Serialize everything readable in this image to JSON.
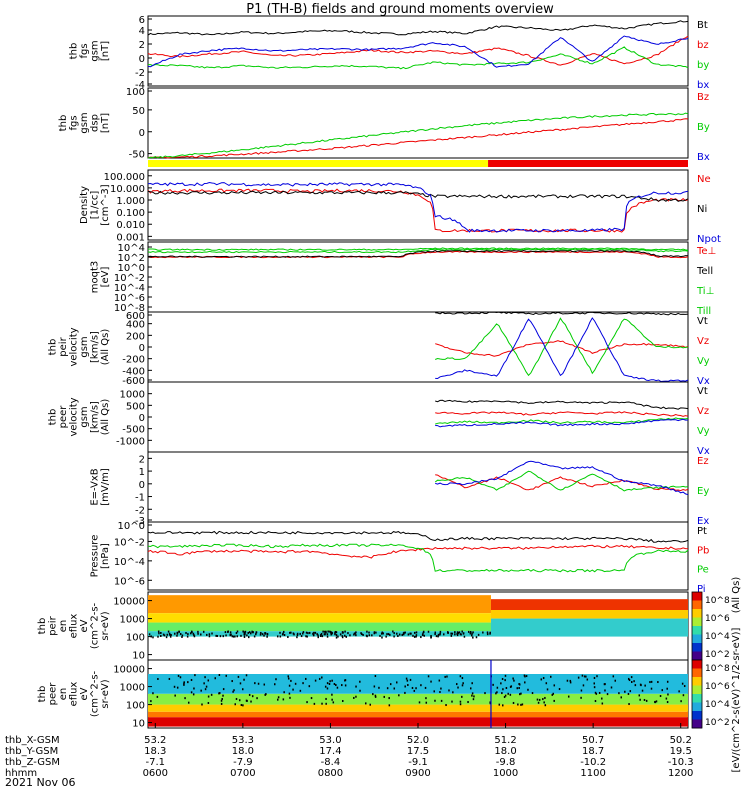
{
  "title": "P1 (TH-B) fields and ground moments overview",
  "date_label": "2021 Nov 06",
  "colorbar_label": "[eV/(cm^2-s(eV)^1/2-sr-eV)]",
  "colorbar_side_label": "(All Qs)",
  "colors": {
    "black": "#000000",
    "red": "#ee0000",
    "green": "#00cc00",
    "blue": "#0000dd",
    "yellow": "#ffff00"
  },
  "status_bar": {
    "yellow_until": "0948",
    "red_from": "0948"
  },
  "chart_data": [
    {
      "type": "line",
      "ylabel": [
        "thb",
        "fgs",
        "gsm",
        "[nT]"
      ],
      "ylim": [
        -4,
        6
      ],
      "yticks": [
        "6",
        "4",
        "2",
        "0",
        "-2",
        "-4"
      ],
      "series": [
        {
          "name": "Bt",
          "color": "black",
          "values": [
            3.4,
            3.6,
            3.3,
            3.7,
            3.5,
            3.8,
            3.9,
            3.6,
            3.4,
            3.8,
            3.5,
            4.5,
            4.3,
            3.9,
            4.7,
            4.2,
            4.9,
            5.3
          ]
        },
        {
          "name": "bz",
          "color": "red",
          "values": [
            0.6,
            0.2,
            0.6,
            0.9,
            0.3,
            0.4,
            0.7,
            1.1,
            0.8,
            1.0,
            0.6,
            1.4,
            0.3,
            -1.0,
            0.6,
            -0.8,
            0.4,
            3.2
          ]
        },
        {
          "name": "by",
          "color": "green",
          "values": [
            -1.0,
            -1.1,
            -1.4,
            -1.1,
            -1.4,
            -1.3,
            -1.1,
            -1.2,
            -1.5,
            -0.6,
            -1.0,
            -0.8,
            -0.6,
            0.5,
            -0.8,
            1.5,
            -0.9,
            -1.3
          ]
        },
        {
          "name": "bx",
          "color": "blue",
          "values": [
            -1.3,
            0.5,
            1.1,
            1.4,
            1.0,
            1.2,
            1.3,
            1.2,
            1.4,
            2.2,
            1.6,
            -1.3,
            -0.8,
            3.0,
            -0.6,
            3.2,
            1.9,
            2.9
          ]
        }
      ]
    },
    {
      "type": "line",
      "ylabel": [
        "thb",
        "fgs",
        "gsm",
        "dsp",
        "[nT]"
      ],
      "ylim": [
        -60,
        100
      ],
      "yticks": [
        "100",
        "50",
        "0",
        "-50"
      ],
      "series": [
        {
          "name": "Bz",
          "color": "red",
          "values": [
            -60,
            -58,
            -55,
            -51,
            -47,
            -42,
            -37,
            -31,
            -25,
            -19,
            -13,
            -7,
            -1,
            5,
            11,
            17,
            23,
            28
          ]
        },
        {
          "name": "By",
          "color": "green",
          "values": [
            -60,
            -55,
            -48,
            -41,
            -33,
            -25,
            -17,
            -9,
            -1,
            7,
            14,
            20,
            26,
            31,
            35,
            38,
            40,
            41
          ]
        },
        {
          "name": "Bx",
          "color": "blue",
          "values": []
        }
      ]
    },
    {
      "type": "line",
      "scale": "log",
      "ylabel": [
        "Density",
        "[1/cc]",
        "[cm^-3]"
      ],
      "ylim": [
        0.0005,
        300
      ],
      "yticks": [
        "100.000",
        "10.000",
        "1.000",
        "0.100",
        "0.010",
        "0.001"
      ],
      "series": [
        {
          "name": "Ne",
          "color": "red",
          "values": [
            5,
            6,
            6,
            6,
            6,
            5,
            6,
            6,
            5,
            0.003,
            0.003,
            0.003,
            0.003,
            0.003,
            0.003,
            0.003,
            1,
            1
          ]
        },
        {
          "name": "Ni",
          "color": "black",
          "values": [
            4,
            4,
            4,
            4,
            4,
            4,
            4,
            4,
            4,
            2,
            2,
            2,
            2,
            2,
            2,
            2,
            1,
            1
          ]
        },
        {
          "name": "Npot",
          "color": "blue",
          "values": [
            20,
            20,
            22,
            20,
            18,
            19,
            20,
            20,
            18,
            0.05,
            0.003,
            0.003,
            0.003,
            0.003,
            0.003,
            0.004,
            4,
            4
          ]
        }
      ]
    },
    {
      "type": "line",
      "scale": "log",
      "ylabel": [
        "moqt3",
        "[eV]"
      ],
      "ylim": [
        1e-09,
        100000
      ],
      "yticks": [
        "10^4",
        "10^2",
        "10^0",
        "10^-2",
        "10^-4",
        "10^-6",
        "10^-8"
      ],
      "series": [
        {
          "name": "Te⊥",
          "color": "red",
          "values": [
            100,
            100,
            100,
            100,
            100,
            100,
            100,
            100,
            100,
            1000,
            1000,
            1000,
            1000,
            1000,
            1000,
            1000,
            100,
            100
          ]
        },
        {
          "name": "Tell",
          "color": "black",
          "values": [
            120,
            120,
            120,
            120,
            120,
            120,
            120,
            120,
            120,
            1500,
            1500,
            1500,
            1500,
            1500,
            1500,
            1500,
            150,
            150
          ]
        },
        {
          "name": "Ti⊥",
          "color": "green",
          "values": [
            1000,
            1000,
            1000,
            1000,
            1000,
            1000,
            1000,
            1000,
            1000,
            3000,
            3000,
            3000,
            3000,
            3000,
            3000,
            3000,
            1500,
            1500
          ]
        },
        {
          "name": "Till",
          "color": "green",
          "values": [
            3000,
            3000,
            3000,
            3000,
            3000,
            3000,
            3000,
            3000,
            3000,
            5000,
            5000,
            5000,
            5000,
            5000,
            5000,
            5000,
            3000,
            3000
          ]
        }
      ]
    },
    {
      "type": "line",
      "ylabel": [
        "thb",
        "peir",
        "velocity",
        "gsm",
        "[km/s]",
        "(All Qs)"
      ],
      "ylim": [
        -600,
        600
      ],
      "yticks": [
        "600",
        "400",
        "200",
        "0",
        "-200",
        "-400",
        "-600"
      ],
      "series": [
        {
          "name": "Vt",
          "color": "black",
          "values": [
            null,
            null,
            null,
            null,
            null,
            null,
            null,
            null,
            null,
            580,
            580,
            590,
            570,
            580,
            580,
            580,
            570,
            560
          ]
        },
        {
          "name": "Vz",
          "color": "red",
          "values": [
            null,
            null,
            null,
            null,
            null,
            null,
            null,
            null,
            null,
            50,
            -100,
            -150,
            50,
            100,
            -100,
            50,
            50,
            0
          ]
        },
        {
          "name": "Vy",
          "color": "green",
          "values": [
            null,
            null,
            null,
            null,
            null,
            null,
            null,
            null,
            null,
            -200,
            -200,
            400,
            -500,
            500,
            -450,
            500,
            0,
            0
          ]
        },
        {
          "name": "Vx",
          "color": "blue",
          "values": [
            null,
            null,
            null,
            null,
            null,
            null,
            null,
            null,
            null,
            -550,
            -400,
            -500,
            500,
            -500,
            500,
            -500,
            -580,
            -580
          ]
        }
      ]
    },
    {
      "type": "line",
      "ylabel": [
        "thb",
        "peer",
        "velocity",
        "gsm",
        "[km/s]",
        "(All Qs)"
      ],
      "ylim": [
        -1500,
        1500
      ],
      "yticks": [
        "1000",
        "500",
        "0",
        "-500",
        "-1000"
      ],
      "series": [
        {
          "name": "Vt",
          "color": "black",
          "values": [
            null,
            null,
            null,
            null,
            null,
            null,
            null,
            null,
            null,
            700,
            650,
            700,
            600,
            650,
            600,
            650,
            400,
            350
          ]
        },
        {
          "name": "Vz",
          "color": "red",
          "values": [
            null,
            null,
            null,
            null,
            null,
            null,
            null,
            null,
            null,
            200,
            150,
            200,
            100,
            200,
            150,
            200,
            100,
            50
          ]
        },
        {
          "name": "Vy",
          "color": "green",
          "values": [
            null,
            null,
            null,
            null,
            null,
            null,
            null,
            null,
            null,
            -300,
            -200,
            -250,
            -150,
            -250,
            -200,
            -250,
            -100,
            -50
          ]
        },
        {
          "name": "Vx",
          "color": "blue",
          "values": [
            null,
            null,
            null,
            null,
            null,
            null,
            null,
            null,
            null,
            -400,
            -350,
            -300,
            -250,
            -350,
            -300,
            -300,
            -150,
            -100
          ]
        }
      ]
    },
    {
      "type": "line",
      "ylabel": [
        "E=-VxB",
        "[mV/m]"
      ],
      "ylim": [
        -3,
        2.5
      ],
      "yticks": [
        "2",
        "1",
        "0",
        "-1",
        "-2",
        "-3"
      ],
      "series": [
        {
          "name": "Ez",
          "color": "red",
          "values": [
            null,
            null,
            null,
            null,
            null,
            null,
            null,
            null,
            null,
            0.8,
            -0.3,
            0.5,
            -0.5,
            0.5,
            -0.2,
            0.3,
            -0.4,
            -0.5
          ]
        },
        {
          "name": "Ey",
          "color": "green",
          "values": [
            null,
            null,
            null,
            null,
            null,
            null,
            null,
            null,
            null,
            0.2,
            0.5,
            -0.5,
            1.0,
            -0.5,
            0.8,
            -0.5,
            -0.3,
            -0.2
          ]
        },
        {
          "name": "Ex",
          "color": "blue",
          "values": [
            null,
            null,
            null,
            null,
            null,
            null,
            null,
            null,
            null,
            0.0,
            0.0,
            0.4,
            1.8,
            1.2,
            1.3,
            0.2,
            -0.1,
            -0.8
          ]
        }
      ]
    },
    {
      "type": "line",
      "scale": "log",
      "ylabel": [
        "Pressure",
        "[nPa]"
      ],
      "ylim": [
        1e-07,
        1
      ],
      "yticks": [
        "10^0",
        "10^-2",
        "10^-4",
        "10^-6"
      ],
      "series": [
        {
          "name": "Pt",
          "color": "black",
          "values": [
            0.08,
            0.08,
            0.08,
            0.08,
            0.08,
            0.08,
            0.08,
            0.08,
            0.08,
            0.015,
            0.02,
            0.02,
            0.02,
            0.02,
            0.02,
            0.02,
            0.01,
            0.01
          ]
        },
        {
          "name": "Pb",
          "color": "red",
          "values": [
            0.001,
            0.0005,
            0.001,
            0.001,
            0.0008,
            0.001,
            0.0004,
            0.0002,
            0.001,
            0.002,
            0.002,
            0.002,
            0.002,
            0.003,
            0.003,
            0.003,
            0.002,
            0.002
          ]
        },
        {
          "name": "Pe",
          "color": "green",
          "values": [
            0.003,
            0.003,
            0.004,
            0.004,
            0.003,
            0.004,
            0.004,
            0.004,
            0.004,
            1e-05,
            1e-05,
            1e-05,
            1e-05,
            1e-05,
            1e-05,
            1e-05,
            0.001,
            0.001
          ]
        },
        {
          "name": "Pi",
          "color": "blue",
          "values": []
        }
      ]
    },
    {
      "type": "heatmap",
      "ylabel": [
        "thb",
        "peir",
        "en",
        "eflux",
        "eV",
        "(cm^2-s-",
        "sr-eV)"
      ],
      "scale": "log",
      "ylim": [
        5,
        30000
      ],
      "yticks": [
        "10000",
        "1000",
        "100",
        "10"
      ],
      "colorbar": {
        "ticks": [
          "10^8",
          "10^6",
          "10^4",
          "10^2"
        ]
      }
    },
    {
      "type": "heatmap",
      "ylabel": [
        "thb",
        "peer",
        "en",
        "eflux",
        "eV",
        "(cm^2-s-",
        "sr-eV)"
      ],
      "scale": "log",
      "ylim": [
        5,
        30000
      ],
      "yticks": [
        "10000",
        "1000",
        "100",
        "10"
      ],
      "colorbar": {
        "ticks": [
          "10^8",
          "10^6",
          "10^4",
          "10^2"
        ]
      }
    }
  ],
  "xaxis": {
    "x_range": [
      "0555",
      "1205"
    ],
    "rows": [
      {
        "label": "thb_X-GSM",
        "values": [
          "53.2",
          "53.3",
          "53.0",
          "52.0",
          "51.2",
          "50.7",
          "50.2"
        ]
      },
      {
        "label": "thb_Y-GSM",
        "values": [
          "18.3",
          "18.0",
          "17.4",
          "17.5",
          "18.0",
          "18.7",
          "19.5"
        ]
      },
      {
        "label": "thb_Z-GSM",
        "values": [
          "-7.1",
          "-7.9",
          "-8.4",
          "-9.1",
          "-9.8",
          "-10.2",
          "-10.3"
        ]
      },
      {
        "label": "hhmm",
        "values": [
          "0600",
          "0700",
          "0800",
          "0900",
          "1000",
          "1100",
          "1200"
        ]
      }
    ]
  }
}
